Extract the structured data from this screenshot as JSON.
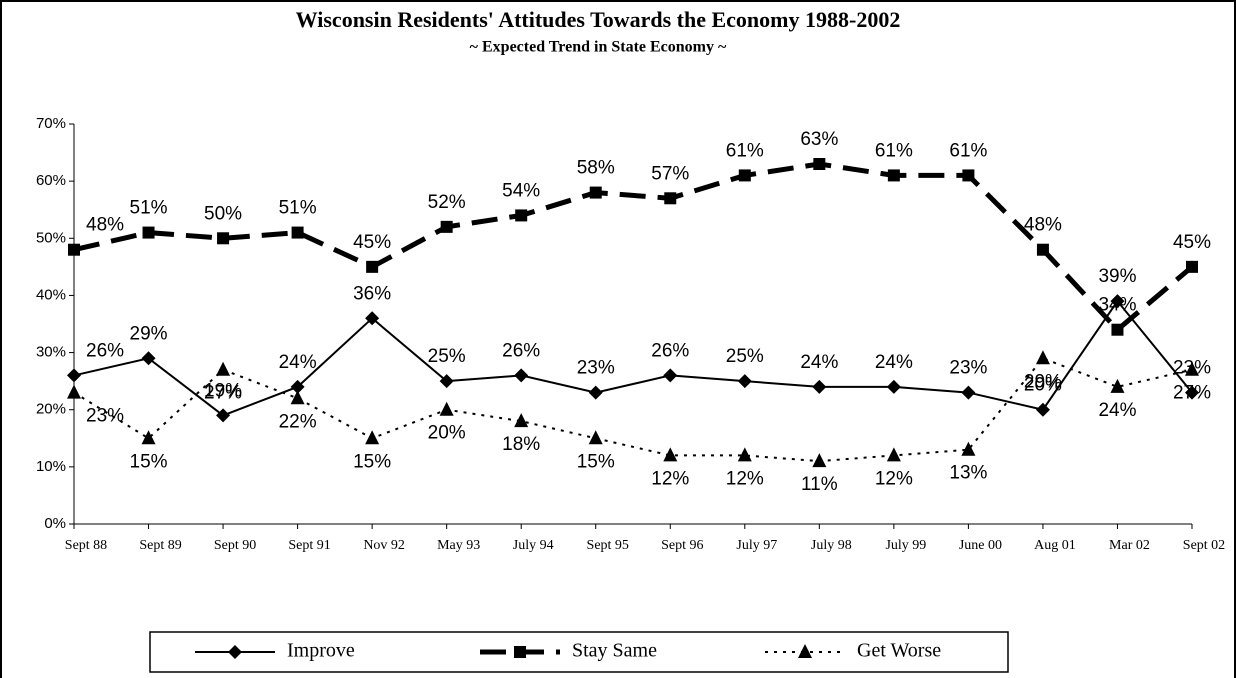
{
  "chart_data": {
    "type": "line",
    "title": "Wisconsin Residents' Attitudes Towards the Economy 1988-2002",
    "subtitle": "~ Expected Trend in State Economy ~",
    "categories": [
      "Sept 88",
      "Sept 89",
      "Sept 90",
      "Sept 91",
      "Nov 92",
      "May 93",
      "July 94",
      "Sept 95",
      "Sept 96",
      "July 97",
      "July 98",
      "July 99",
      "June 00",
      "Aug 01",
      "Mar 02",
      "Sept 02"
    ],
    "ylim": [
      0,
      70
    ],
    "yticks": [
      {
        "value": 0,
        "label": "0%"
      },
      {
        "value": 10,
        "label": "10%"
      },
      {
        "value": 20,
        "label": "20%"
      },
      {
        "value": 30,
        "label": "30%"
      },
      {
        "value": 40,
        "label": "40%"
      },
      {
        "value": 50,
        "label": "50%"
      },
      {
        "value": 60,
        "label": "60%"
      },
      {
        "value": 70,
        "label": "70%"
      }
    ],
    "legend": "bottom",
    "series": [
      {
        "name": "Improve",
        "color": "#000000",
        "marker": "diamond",
        "line": "solid",
        "values": [
          26,
          29,
          19,
          24,
          36,
          25,
          26,
          23,
          26,
          25,
          24,
          24,
          23,
          20,
          39,
          23
        ],
        "value_labels": [
          "26%",
          "29%",
          "19%",
          "24%",
          "36%",
          "25%",
          "26%",
          "23%",
          "26%",
          "25%",
          "24%",
          "24%",
          "23%",
          "20%",
          "39%",
          "23%"
        ]
      },
      {
        "name": "Stay Same",
        "color": "#000000",
        "marker": "square",
        "line": "dashed",
        "values": [
          48,
          51,
          50,
          51,
          45,
          52,
          54,
          58,
          57,
          61,
          63,
          61,
          61,
          48,
          34,
          45
        ],
        "value_labels": [
          "48%",
          "51%",
          "50%",
          "51%",
          "45%",
          "52%",
          "54%",
          "58%",
          "57%",
          "61%",
          "63%",
          "61%",
          "61%",
          "48%",
          "34%",
          "45%"
        ]
      },
      {
        "name": "Get Worse",
        "color": "#000000",
        "marker": "triangle",
        "line": "dotted",
        "values": [
          23,
          15,
          27,
          22,
          15,
          20,
          18,
          15,
          12,
          12,
          11,
          12,
          13,
          29,
          24,
          27
        ],
        "value_labels": [
          "23%",
          "15%",
          "27%",
          "22%",
          "15%",
          "20%",
          "18%",
          "15%",
          "12%",
          "12%",
          "11%",
          "12%",
          "13%",
          "29%",
          "24%",
          "27%"
        ]
      }
    ]
  }
}
